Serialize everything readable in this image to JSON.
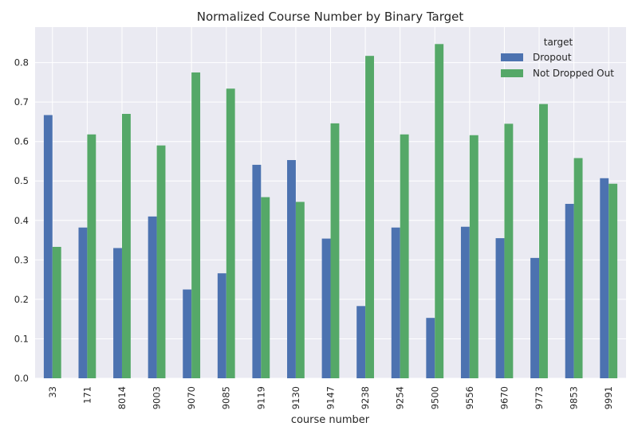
{
  "chart_data": {
    "type": "bar",
    "title": "Normalized Course Number by Binary Target",
    "xlabel": "course number",
    "ylabel": "",
    "ylim": [
      0,
      0.89
    ],
    "yticks": [
      "0.0",
      "0.1",
      "0.2",
      "0.3",
      "0.4",
      "0.5",
      "0.6",
      "0.7",
      "0.8"
    ],
    "categories": [
      "33",
      "171",
      "8014",
      "9003",
      "9070",
      "9085",
      "9119",
      "9130",
      "9147",
      "9238",
      "9254",
      "9500",
      "9556",
      "9670",
      "9773",
      "9853",
      "9991"
    ],
    "series": [
      {
        "name": "Dropout",
        "color": "#4c72b0",
        "values": [
          0.667,
          0.382,
          0.33,
          0.41,
          0.225,
          0.266,
          0.541,
          0.553,
          0.354,
          0.183,
          0.382,
          0.153,
          0.384,
          0.355,
          0.305,
          0.442,
          0.507
        ]
      },
      {
        "name": "Not Dropped Out",
        "color": "#55a868",
        "values": [
          0.333,
          0.618,
          0.67,
          0.59,
          0.775,
          0.734,
          0.459,
          0.447,
          0.646,
          0.817,
          0.618,
          0.847,
          0.616,
          0.645,
          0.695,
          0.558,
          0.493
        ]
      }
    ],
    "legend": {
      "title": "target",
      "position": "top-right"
    },
    "grid": true
  }
}
